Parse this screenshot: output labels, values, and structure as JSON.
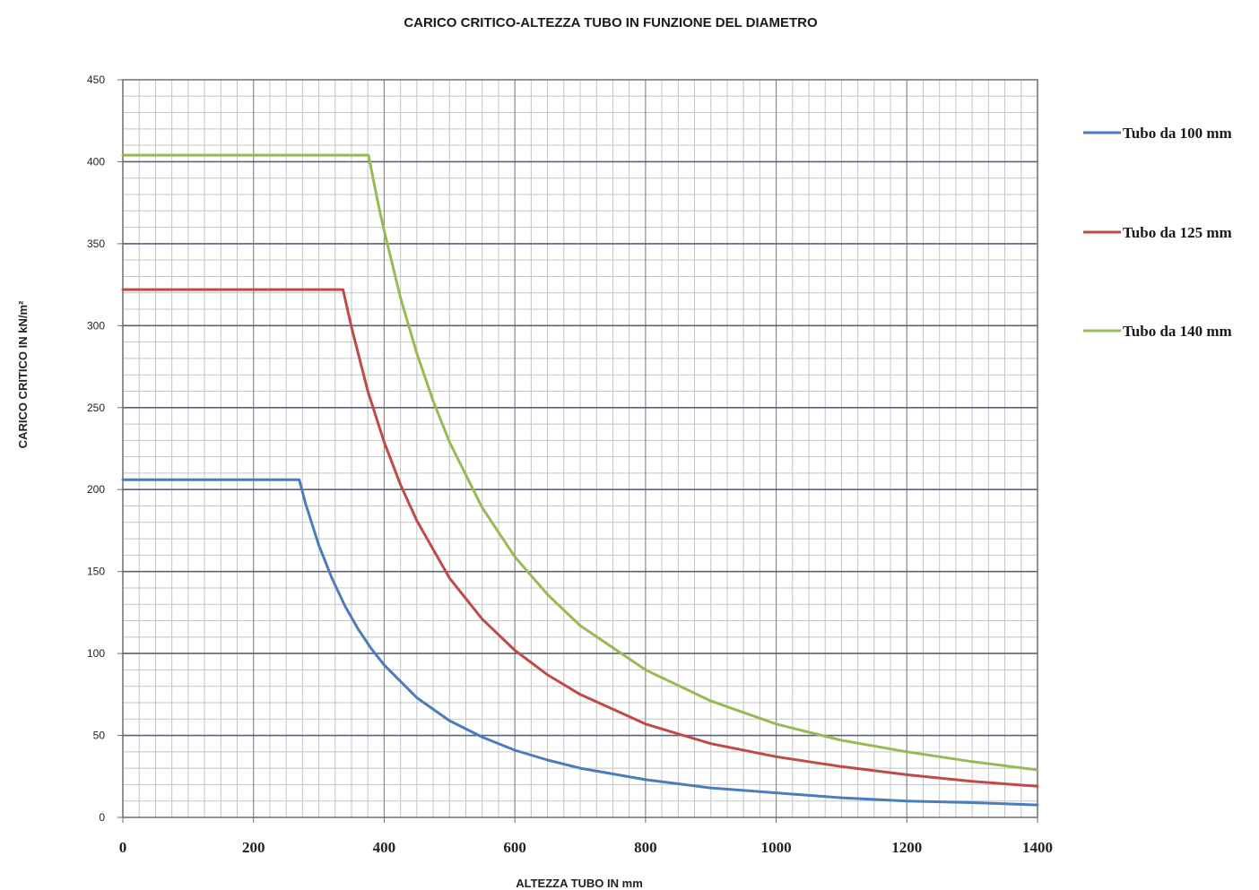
{
  "chart_data": {
    "type": "line",
    "title": "CARICO CRITICO-ALTEZZA TUBO IN FUNZIONE DEL DIAMETRO",
    "xlabel": "ALTEZZA TUBO IN mm",
    "ylabel": "CARICO CRITICO IN kN/m²",
    "xlim": [
      0,
      1400
    ],
    "ylim": [
      0,
      450
    ],
    "xticks": [
      "0",
      "200",
      "400",
      "600",
      "800",
      "1000",
      "1200",
      "1400"
    ],
    "yticks": [
      "0",
      "50",
      "100",
      "150",
      "200",
      "250",
      "300",
      "350",
      "400",
      "450"
    ],
    "grid": true,
    "legend_position": "right",
    "series": [
      {
        "name": "Tubo da 100 mm",
        "color": "#4a7ebb",
        "x": [
          0,
          270,
          280,
          300,
          320,
          340,
          360,
          380,
          400,
          450,
          500,
          550,
          600,
          650,
          700,
          800,
          900,
          1000,
          1100,
          1200,
          1300,
          1400
        ],
        "y": [
          206,
          206,
          191,
          166,
          146,
          129,
          115,
          103,
          93,
          73,
          59,
          49,
          41,
          35,
          30,
          23,
          18,
          15,
          12,
          10,
          9,
          7.6
        ]
      },
      {
        "name": "Tubo da 125 mm",
        "color": "#be4b48",
        "x": [
          0,
          337,
          350,
          375,
          400,
          425,
          450,
          500,
          550,
          600,
          650,
          700,
          800,
          900,
          1000,
          1100,
          1200,
          1300,
          1400
        ],
        "y": [
          322,
          322,
          299,
          260,
          229,
          203,
          181,
          146,
          121,
          102,
          87,
          75,
          57,
          45,
          37,
          31,
          26,
          22,
          19
        ]
      },
      {
        "name": "Tubo da 140 mm",
        "color": "#98b954",
        "x": [
          0,
          376,
          390,
          400,
          425,
          450,
          475,
          500,
          550,
          600,
          650,
          700,
          800,
          900,
          1000,
          1100,
          1200,
          1300,
          1400
        ],
        "y": [
          404,
          404,
          376,
          358,
          317,
          283,
          254,
          229,
          189,
          159,
          136,
          117,
          90,
          71,
          57,
          47,
          40,
          34,
          29
        ]
      }
    ]
  }
}
